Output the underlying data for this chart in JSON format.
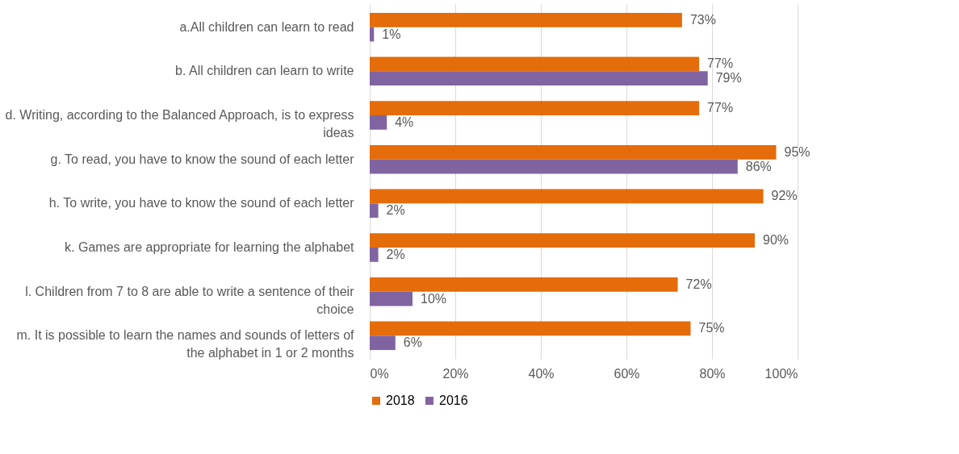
{
  "chart_data": {
    "type": "bar",
    "orientation": "horizontal",
    "categories": [
      "a.All children can learn to read",
      "b. All children can learn to write",
      "d. Writing, according to the Balanced Approach, is to express ideas",
      "g. To read, you have to know the sound of each letter",
      "h. To write, you have to know the sound of each letter",
      "k. Games are appropriate for learning the alphabet",
      "l. Children from 7 to 8 are able to write a sentence of their choice",
      "m. It is possible to learn the names and sounds of letters of the alphabet in 1 or 2 months"
    ],
    "series": [
      {
        "name": "2018",
        "color": "#e46c0a",
        "values": [
          73,
          77,
          77,
          95,
          92,
          90,
          72,
          75
        ],
        "value_labels": [
          "73%",
          "77%",
          "77%",
          "95%",
          "92%",
          "90%",
          "72%",
          "75%"
        ]
      },
      {
        "name": "2016",
        "color": "#8064a2",
        "values": [
          1,
          79,
          4,
          86,
          2,
          2,
          10,
          6
        ],
        "value_labels": [
          "1%",
          "79%",
          "4%",
          "86%",
          "2%",
          "2%",
          "10%",
          "6%"
        ]
      }
    ],
    "xlim": [
      0,
      100
    ],
    "xticks": [
      {
        "value": 0,
        "label": "0%"
      },
      {
        "value": 20,
        "label": "20%"
      },
      {
        "value": 40,
        "label": "40%"
      },
      {
        "value": 60,
        "label": "60%"
      },
      {
        "value": 80,
        "label": "80%"
      },
      {
        "value": 100,
        "label": "100%"
      }
    ],
    "grid": "x",
    "legend": "bottom"
  }
}
